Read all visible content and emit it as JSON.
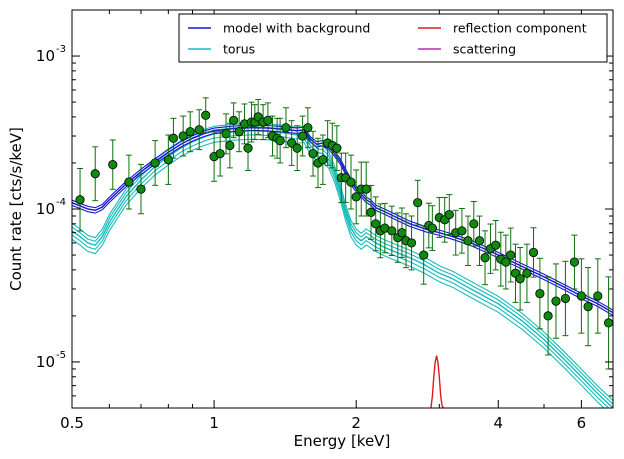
{
  "chart_data": {
    "type": "line",
    "title": "",
    "xlabel": "Energy [keV]",
    "ylabel": "Count rate [cts/s/keV]",
    "x_scale": "log",
    "y_scale": "log",
    "xlim": [
      0.5,
      7.0
    ],
    "ylim": [
      5e-06,
      0.002
    ],
    "x_ticks": [
      {
        "value": 0.5,
        "label": "0.5"
      },
      {
        "value": 1,
        "label": "1"
      },
      {
        "value": 2,
        "label": "2"
      },
      {
        "value": 4,
        "label": "4"
      },
      {
        "value": 6,
        "label": "6"
      }
    ],
    "y_ticks": [
      {
        "value": 1e-05,
        "base": "10",
        "exp": "-5"
      },
      {
        "value": 0.0001,
        "base": "10",
        "exp": "-4"
      },
      {
        "value": 0.001,
        "base": "10",
        "exp": "-3"
      }
    ],
    "legend_position": "top-right",
    "series": [
      {
        "name": "model with background",
        "color": "#1515d6",
        "band_factors": [
          0.96,
          1.04
        ],
        "x": [
          0.5,
          0.52,
          0.54,
          0.56,
          0.58,
          0.6,
          0.65,
          0.7,
          0.75,
          0.8,
          0.85,
          0.9,
          0.95,
          1.0,
          1.1,
          1.2,
          1.3,
          1.4,
          1.5,
          1.55,
          1.6,
          1.65,
          1.7,
          1.75,
          1.8,
          1.85,
          1.9,
          1.95,
          2.0,
          2.05,
          2.1,
          2.15,
          2.2,
          2.3,
          2.4,
          2.6,
          2.8,
          3.0,
          3.2,
          3.5,
          4.0,
          4.5,
          5.0,
          5.5,
          6.0,
          6.5,
          7.0
        ],
        "y": [
          0.00011,
          0.000105,
          0.0001,
          9.8e-05,
          0.000103,
          0.000115,
          0.000145,
          0.000175,
          0.000205,
          0.000235,
          0.000265,
          0.00029,
          0.00031,
          0.000325,
          0.000335,
          0.00034,
          0.000338,
          0.000332,
          0.000325,
          0.00033,
          0.000285,
          0.000265,
          0.00027,
          0.000255,
          0.00023,
          0.000205,
          0.000175,
          0.00015,
          0.000135,
          0.000125,
          0.000115,
          0.00011,
          0.000102,
          9.6e-05,
          9e-05,
          8e-05,
          7.4e-05,
          7e-05,
          6.6e-05,
          6e-05,
          5e-05,
          4.2e-05,
          3.6e-05,
          3.1e-05,
          2.7e-05,
          2.4e-05,
          2.1e-05
        ]
      },
      {
        "name": "torus",
        "color": "#18bcbc",
        "band_factors": [
          0.88,
          0.94,
          1.06,
          1.12
        ],
        "x": [
          0.5,
          0.52,
          0.54,
          0.56,
          0.58,
          0.6,
          0.65,
          0.7,
          0.75,
          0.8,
          0.85,
          0.9,
          0.95,
          1.0,
          1.1,
          1.2,
          1.3,
          1.4,
          1.5,
          1.55,
          1.6,
          1.65,
          1.7,
          1.75,
          1.8,
          1.85,
          1.9,
          1.95,
          2.0,
          2.05,
          2.1,
          2.15,
          2.2,
          2.3,
          2.4,
          2.6,
          2.8,
          3.0,
          3.2,
          3.5,
          4.0,
          4.5,
          5.0,
          5.5,
          6.0,
          6.5,
          7.0
        ],
        "y": [
          7.2e-05,
          6.6e-05,
          6e-05,
          5.8e-05,
          6.6e-05,
          8.2e-05,
          0.00012,
          0.000155,
          0.00019,
          0.00022,
          0.00025,
          0.000275,
          0.000295,
          0.00031,
          0.00032,
          0.000325,
          0.000322,
          0.000315,
          0.000305,
          0.00031,
          0.00026,
          0.000235,
          0.00023,
          0.00021,
          0.00017,
          0.00013,
          9.5e-05,
          7.5e-05,
          6.6e-05,
          6.2e-05,
          6.6e-05,
          6.3e-05,
          6e-05,
          5.6e-05,
          5.3e-05,
          4.8e-05,
          4.3e-05,
          3.8e-05,
          3.5e-05,
          3e-05,
          2.4e-05,
          1.85e-05,
          1.4e-05,
          1.05e-05,
          8e-06,
          6.2e-06,
          5e-06
        ]
      },
      {
        "name": "reflection component",
        "color": "#e01a1a",
        "x": [
          2.88,
          2.9,
          2.92,
          2.94,
          2.96,
          2.98,
          3.0,
          3.02,
          3.04,
          3.06
        ],
        "y": [
          5e-06,
          6e-06,
          8e-06,
          1e-05,
          1.1e-05,
          1e-05,
          8e-06,
          6e-06,
          5.2e-06,
          5e-06
        ]
      },
      {
        "name": "scattering",
        "color": "#c026c0",
        "x": [],
        "y": []
      }
    ],
    "data_points": {
      "color": "#0d700d",
      "x": [
        0.52,
        0.56,
        0.61,
        0.66,
        0.7,
        0.75,
        0.8,
        0.82,
        0.86,
        0.89,
        0.93,
        0.96,
        1.0,
        1.03,
        1.06,
        1.08,
        1.1,
        1.13,
        1.16,
        1.18,
        1.2,
        1.22,
        1.24,
        1.27,
        1.3,
        1.33,
        1.36,
        1.38,
        1.42,
        1.46,
        1.5,
        1.54,
        1.58,
        1.62,
        1.66,
        1.7,
        1.74,
        1.78,
        1.82,
        1.86,
        1.9,
        1.95,
        2.0,
        2.05,
        2.1,
        2.15,
        2.2,
        2.25,
        2.3,
        2.38,
        2.45,
        2.5,
        2.55,
        2.62,
        2.7,
        2.78,
        2.85,
        2.9,
        3.0,
        3.08,
        3.15,
        3.25,
        3.35,
        3.45,
        3.55,
        3.65,
        3.75,
        3.85,
        3.95,
        4.05,
        4.15,
        4.25,
        4.35,
        4.45,
        4.6,
        4.75,
        4.9,
        5.1,
        5.3,
        5.55,
        5.8,
        6.0,
        6.2,
        6.5,
        6.85
      ],
      "y": [
        0.000115,
        0.00017,
        0.000195,
        0.00015,
        0.000135,
        0.0002,
        0.00021,
        0.00029,
        0.0003,
        0.00032,
        0.00033,
        0.00041,
        0.00022,
        0.00023,
        0.00031,
        0.00026,
        0.00038,
        0.00032,
        0.00036,
        0.00025,
        0.00037,
        0.00037,
        0.0004,
        0.00037,
        0.00038,
        0.0003,
        0.00029,
        0.00028,
        0.00034,
        0.00027,
        0.00025,
        0.0003,
        0.00034,
        0.00023,
        0.0002,
        0.00021,
        0.00027,
        0.00026,
        0.00025,
        0.00016,
        0.00016,
        0.00015,
        0.00012,
        0.000135,
        0.000135,
        9.5e-05,
        8e-05,
        7.2e-05,
        7.5e-05,
        7.2e-05,
        6.5e-05,
        7e-05,
        6.2e-05,
        6e-05,
        0.00011,
        5e-05,
        7.8e-05,
        7.5e-05,
        8.8e-05,
        8.5e-05,
        9.2e-05,
        7e-05,
        7.2e-05,
        6.2e-05,
        8e-05,
        6.2e-05,
        4.8e-05,
        5.5e-05,
        5.8e-05,
        4.7e-05,
        4.5e-05,
        5e-05,
        3.8e-05,
        3.5e-05,
        3.8e-05,
        5.2e-05,
        2.8e-05,
        2e-05,
        2.5e-05,
        2.6e-05,
        4.5e-05,
        2.7e-05,
        2.3e-05,
        2.7e-05,
        1.8e-05
      ],
      "err_factor": [
        1.6,
        1.5,
        1.45,
        1.5,
        1.45,
        1.4,
        1.45,
        1.35,
        1.35,
        1.35,
        1.35,
        1.3,
        1.45,
        1.4,
        1.35,
        1.4,
        1.3,
        1.35,
        1.35,
        1.4,
        1.35,
        1.3,
        1.3,
        1.3,
        1.3,
        1.35,
        1.35,
        1.4,
        1.35,
        1.4,
        1.4,
        1.35,
        1.35,
        1.4,
        1.45,
        1.45,
        1.4,
        1.4,
        1.4,
        1.45,
        1.45,
        1.5,
        1.5,
        1.5,
        1.5,
        1.5,
        1.5,
        1.5,
        1.45,
        1.45,
        1.45,
        1.45,
        1.5,
        1.5,
        1.4,
        1.55,
        1.4,
        1.4,
        1.35,
        1.4,
        1.35,
        1.4,
        1.4,
        1.45,
        1.4,
        1.45,
        1.5,
        1.45,
        1.45,
        1.5,
        1.5,
        1.5,
        1.55,
        1.6,
        1.55,
        1.45,
        1.7,
        1.8,
        1.75,
        1.75,
        1.5,
        1.75,
        1.8,
        1.75,
        2.0
      ]
    }
  }
}
